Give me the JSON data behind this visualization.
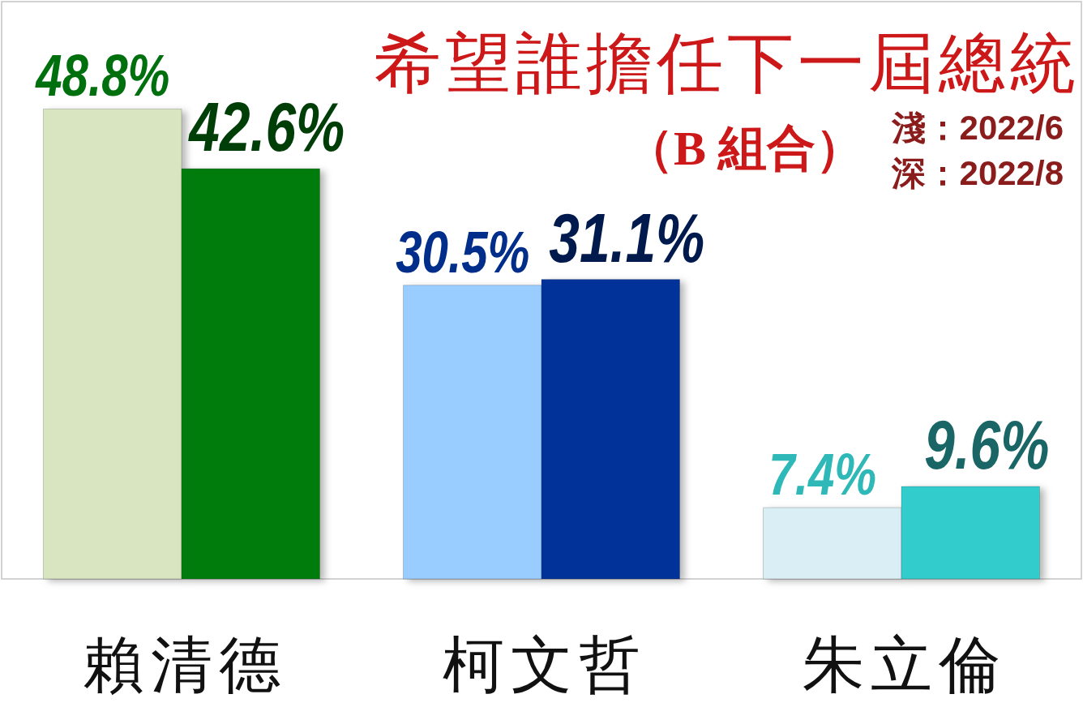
{
  "chart_data": {
    "type": "bar",
    "title": "希望誰擔任下一屆總統",
    "subtitle": "（B 組合）",
    "annotations": [
      "淺：2022/6",
      "深：2022/8"
    ],
    "categories": [
      "賴清德",
      "柯文哲",
      "朱立倫"
    ],
    "series": [
      {
        "colors": [
          "#d9e4c0",
          "#99ccff",
          "#daeef5"
        ],
        "values": [
          48.8,
          30.5,
          7.4
        ],
        "value_labels": [
          "48.8%",
          "30.5%",
          "7.4%"
        ]
      },
      {
        "colors": [
          "#007c10",
          "#003399",
          "#33cccc"
        ],
        "values": [
          42.6,
          31.1,
          9.6
        ],
        "value_labels": [
          "42.6%",
          "31.1%",
          "9.6%"
        ]
      }
    ]
  }
}
